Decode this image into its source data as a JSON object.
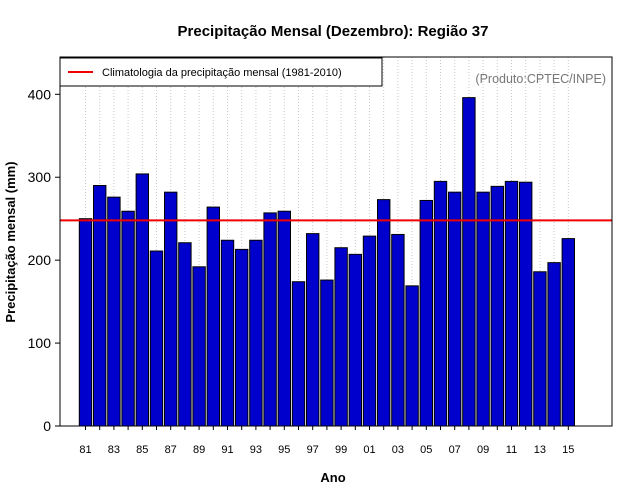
{
  "chart_data": {
    "type": "bar",
    "title": "Precipitação Mensal (Dezembro): Região 37",
    "xlabel": "Ano",
    "ylabel": "Precipitação mensal (mm)",
    "source": "(Produto:CPTEC/INPE)",
    "legend": {
      "label": "Climatologia da precipitação mensal (1981-2010)",
      "placement": "top-left"
    },
    "climatology": 248,
    "ylim": [
      0,
      445
    ],
    "yticks": [
      0,
      100,
      200,
      300,
      400
    ],
    "categories": [
      "81",
      "82",
      "83",
      "84",
      "85",
      "86",
      "87",
      "88",
      "89",
      "90",
      "91",
      "92",
      "93",
      "94",
      "95",
      "96",
      "97",
      "98",
      "99",
      "00",
      "01",
      "02",
      "03",
      "04",
      "05",
      "06",
      "07",
      "08",
      "09",
      "10",
      "11",
      "12",
      "13",
      "14",
      "15"
    ],
    "tick_labels": [
      "81",
      "83",
      "85",
      "87",
      "89",
      "91",
      "93",
      "95",
      "97",
      "99",
      "01",
      "03",
      "05",
      "07",
      "09",
      "11",
      "13",
      "15"
    ],
    "values": [
      250,
      290,
      276,
      259,
      304,
      211,
      282,
      221,
      192,
      264,
      224,
      213,
      224,
      257,
      259,
      174,
      232,
      176,
      215,
      207,
      229,
      273,
      231,
      169,
      272,
      295,
      282,
      396,
      282,
      289,
      295,
      294,
      186,
      197,
      226
    ],
    "colors": {
      "bar": "#0000cc",
      "bar_edge": "#000000",
      "climatology_line": "#ee0000",
      "grid": "#c8c8c8"
    }
  }
}
